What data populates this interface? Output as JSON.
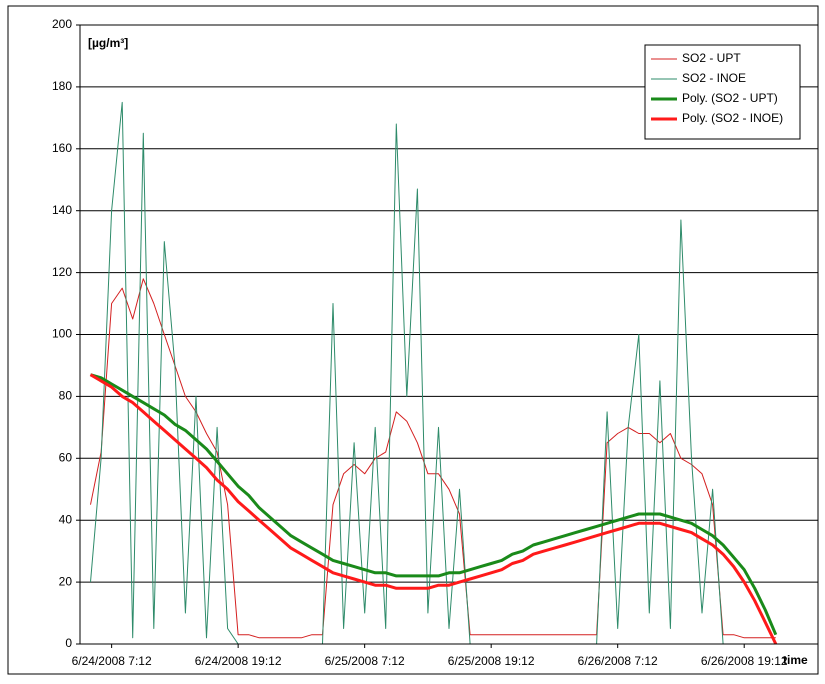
{
  "chart_data": {
    "type": "line",
    "y_label": "[µg/m³]",
    "x_label": "time",
    "x": [
      "6/24/2008 5:12",
      "6/24/2008 6:12",
      "6/24/2008 7:12",
      "6/24/2008 8:12",
      "6/24/2008 9:12",
      "6/24/2008 10:12",
      "6/24/2008 11:12",
      "6/24/2008 12:12",
      "6/24/2008 13:12",
      "6/24/2008 14:12",
      "6/24/2008 15:12",
      "6/24/2008 16:12",
      "6/24/2008 17:12",
      "6/24/2008 18:12",
      "6/24/2008 19:12",
      "6/24/2008 20:12",
      "6/24/2008 21:12",
      "6/24/2008 22:12",
      "6/24/2008 23:12",
      "6/25/2008 0:12",
      "6/25/2008 1:12",
      "6/25/2008 2:12",
      "6/25/2008 3:12",
      "6/25/2008 4:12",
      "6/25/2008 5:12",
      "6/25/2008 6:12",
      "6/25/2008 7:12",
      "6/25/2008 8:12",
      "6/25/2008 9:12",
      "6/25/2008 10:12",
      "6/25/2008 11:12",
      "6/25/2008 12:12",
      "6/25/2008 13:12",
      "6/25/2008 14:12",
      "6/25/2008 15:12",
      "6/25/2008 16:12",
      "6/25/2008 17:12",
      "6/25/2008 18:12",
      "6/25/2008 19:12",
      "6/25/2008 20:12",
      "6/25/2008 21:12",
      "6/25/2008 22:12",
      "6/25/2008 23:12",
      "6/26/2008 0:12",
      "6/26/2008 1:12",
      "6/26/2008 2:12",
      "6/26/2008 3:12",
      "6/26/2008 4:12",
      "6/26/2008 5:12",
      "6/26/2008 6:12",
      "6/26/2008 7:12",
      "6/26/2008 8:12",
      "6/26/2008 9:12",
      "6/26/2008 10:12",
      "6/26/2008 11:12",
      "6/26/2008 12:12",
      "6/26/2008 13:12",
      "6/26/2008 14:12",
      "6/26/2008 15:12",
      "6/26/2008 16:12",
      "6/26/2008 17:12",
      "6/26/2008 18:12",
      "6/26/2008 19:12",
      "6/26/2008 20:12",
      "6/26/2008 21:12",
      "6/26/2008 22:12"
    ],
    "series": [
      {
        "name": "SO2 - UPT",
        "color": "#d42020",
        "line_width": 1,
        "values": [
          45,
          62,
          110,
          115,
          105,
          118,
          110,
          100,
          90,
          80,
          75,
          68,
          62,
          45,
          3,
          3,
          2,
          2,
          2,
          2,
          2,
          3,
          3,
          45,
          55,
          58,
          55,
          60,
          62,
          75,
          72,
          65,
          55,
          55,
          50,
          42,
          3,
          3,
          3,
          3,
          3,
          3,
          3,
          3,
          3,
          3,
          3,
          3,
          3,
          65,
          68,
          70,
          68,
          68,
          65,
          68,
          60,
          58,
          55,
          45,
          3,
          3,
          2,
          2,
          2,
          2
        ]
      },
      {
        "name": "SO2 - INOE",
        "color": "#2e8b6a",
        "line_width": 1,
        "values": [
          20,
          60,
          140,
          175,
          2,
          165,
          5,
          130,
          90,
          10,
          80,
          2,
          70,
          5,
          0,
          0,
          0,
          0,
          0,
          0,
          0,
          0,
          0,
          110,
          5,
          65,
          10,
          70,
          5,
          168,
          80,
          147,
          10,
          70,
          5,
          50,
          0,
          0,
          0,
          0,
          0,
          0,
          0,
          0,
          0,
          0,
          0,
          0,
          0,
          75,
          5,
          70,
          100,
          10,
          85,
          5,
          137,
          60,
          10,
          50,
          0,
          0,
          0,
          0,
          0,
          0
        ]
      },
      {
        "name": "Poly. (SO2 - UPT)",
        "color": "#1a8a1a",
        "line_width": 3,
        "values": [
          87,
          86,
          84,
          82,
          80,
          78,
          76,
          74,
          71,
          69,
          66,
          63,
          59,
          55,
          51,
          48,
          44,
          41,
          38,
          35,
          33,
          31,
          29,
          27,
          26,
          25,
          24,
          23,
          23,
          22,
          22,
          22,
          22,
          22,
          23,
          23,
          24,
          25,
          26,
          27,
          29,
          30,
          32,
          33,
          34,
          35,
          36,
          37,
          38,
          39,
          40,
          41,
          42,
          42,
          42,
          41,
          40,
          39,
          37,
          35,
          32,
          28,
          24,
          18,
          11,
          3
        ]
      },
      {
        "name": "Poly. (SO2 - INOE)",
        "color": "#ff1a1a",
        "line_width": 3,
        "values": [
          87,
          85,
          83,
          80,
          78,
          75,
          72,
          69,
          66,
          63,
          60,
          57,
          53,
          50,
          46,
          43,
          40,
          37,
          34,
          31,
          29,
          27,
          25,
          23,
          22,
          21,
          20,
          19,
          19,
          18,
          18,
          18,
          18,
          19,
          19,
          20,
          21,
          22,
          23,
          24,
          26,
          27,
          29,
          30,
          31,
          32,
          33,
          34,
          35,
          36,
          37,
          38,
          39,
          39,
          39,
          38,
          37,
          36,
          34,
          32,
          29,
          25,
          20,
          14,
          7,
          0
        ]
      }
    ],
    "xlim": [
      "6/24/2008 4:12",
      "6/27/2008 2:12"
    ],
    "xticks": [
      "6/24/2008 7:12",
      "6/24/2008 19:12",
      "6/25/2008 7:12",
      "6/25/2008 19:12",
      "6/26/2008 7:12",
      "6/26/2008 19:12"
    ],
    "ylim": [
      0,
      200
    ],
    "yticks": [
      0,
      20,
      40,
      60,
      80,
      100,
      120,
      140,
      160,
      180,
      200
    ],
    "grid": true,
    "legend": "top-right"
  }
}
